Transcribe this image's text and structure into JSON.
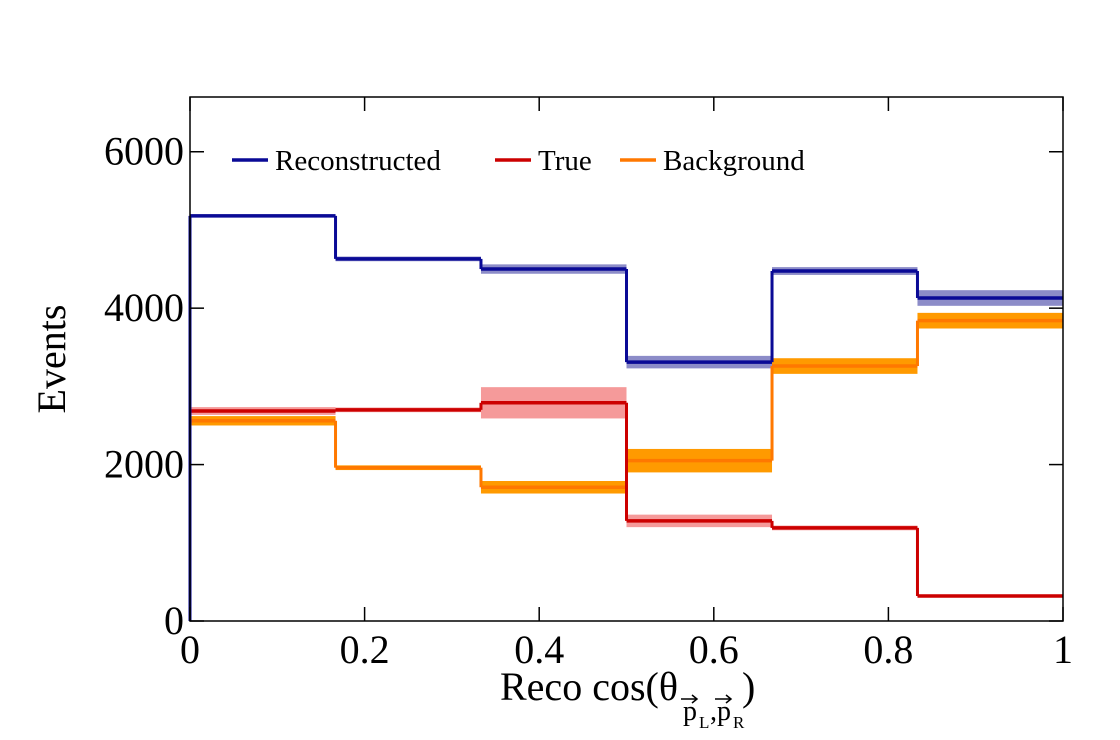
{
  "chart_data": {
    "type": "step-histogram",
    "xlabel": [
      "Reco cos(θ",
      "p",
      "L",
      ",",
      "p",
      "R",
      ")"
    ],
    "ylabel": "Events",
    "bins": [
      0,
      0.1667,
      0.3333,
      0.5,
      0.6667,
      0.8333,
      1
    ],
    "series": [
      {
        "name": "Reconstructed",
        "color": "#0a0a96",
        "band_color": "#8c8cc8",
        "values": [
          5180,
          4630,
          4500,
          3310,
          4475,
          4130
        ],
        "errors": [
          20,
          30,
          60,
          80,
          50,
          100
        ]
      },
      {
        "name": "True",
        "color": "#cc0000",
        "band_color": "#f59a9a",
        "values": [
          2685,
          2700,
          2790,
          1280,
          1190,
          320
        ],
        "errors": [
          50,
          30,
          200,
          80,
          30,
          20
        ]
      },
      {
        "name": "Background",
        "color": "#ff7800",
        "band_color": "#ff9a00",
        "values": [
          2560,
          1960,
          1710,
          2050,
          3260,
          3840
        ],
        "errors": [
          60,
          30,
          80,
          150,
          100,
          100
        ]
      }
    ],
    "xlim": [
      0,
      1
    ],
    "ylim": [
      0,
      6700
    ],
    "xticks": [
      0,
      0.2,
      0.4,
      0.6,
      0.8,
      1
    ],
    "yticks": [
      0,
      2000,
      4000,
      6000
    ],
    "legend": "top-left"
  }
}
